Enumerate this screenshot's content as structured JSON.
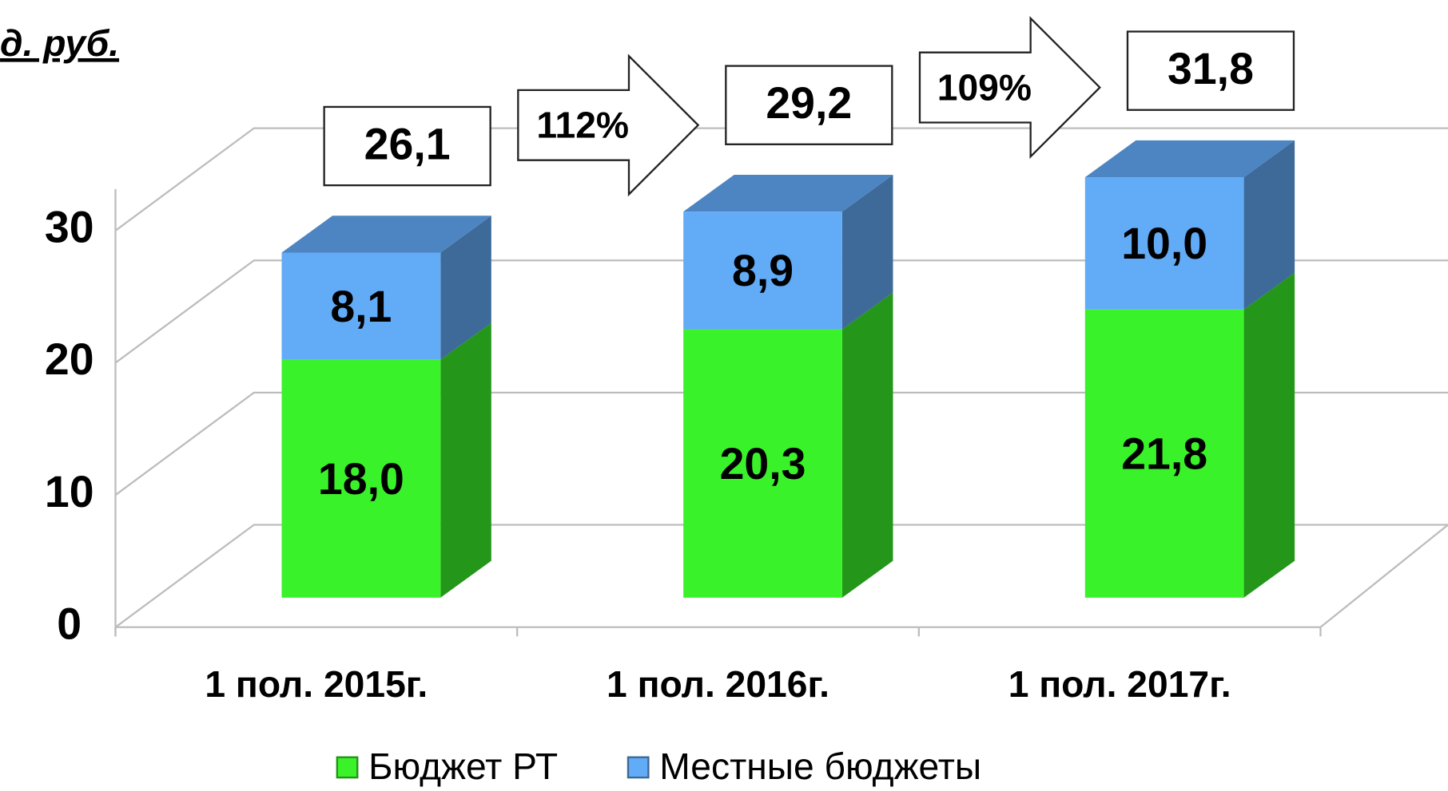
{
  "chart_data": {
    "type": "bar3d_stacked",
    "unit_label": "д. руб.",
    "categories": [
      "1 пол. 2015г.",
      "1 пол. 2016г.",
      "1 пол. 2017г."
    ],
    "series": [
      {
        "name": "Бюджет РТ",
        "color": "#3af22a",
        "values": [
          18.0,
          20.3,
          21.8
        ],
        "value_labels": [
          "18,0",
          "20,3",
          "21,8"
        ]
      },
      {
        "name": "Местные бюджеты",
        "color": "#62abf7",
        "values": [
          8.1,
          8.9,
          10.0
        ],
        "value_labels": [
          "8,1",
          "8,9",
          "10,0"
        ]
      }
    ],
    "totals": [
      26.1,
      29.2,
      31.8
    ],
    "total_labels": [
      "26,1",
      "29,2",
      "31,8"
    ],
    "growth": [
      112,
      109
    ],
    "growth_labels": [
      "112%",
      "109%"
    ],
    "ylim": [
      0,
      30
    ],
    "yticks": [
      0,
      10,
      20,
      30
    ],
    "grid": true,
    "legend": "bottom"
  }
}
